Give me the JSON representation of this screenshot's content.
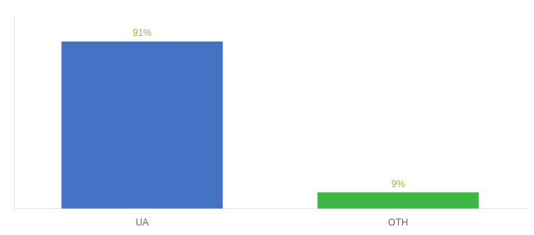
{
  "chart_data": {
    "type": "bar",
    "categories": [
      "UA",
      "OTH"
    ],
    "values": [
      91,
      9
    ],
    "value_labels": [
      "91%",
      "9%"
    ],
    "colors": [
      "#4472c4",
      "#3cb843"
    ],
    "ylim": [
      0,
      105
    ],
    "grid": false,
    "data_labels": true,
    "tick_labels": "x"
  }
}
